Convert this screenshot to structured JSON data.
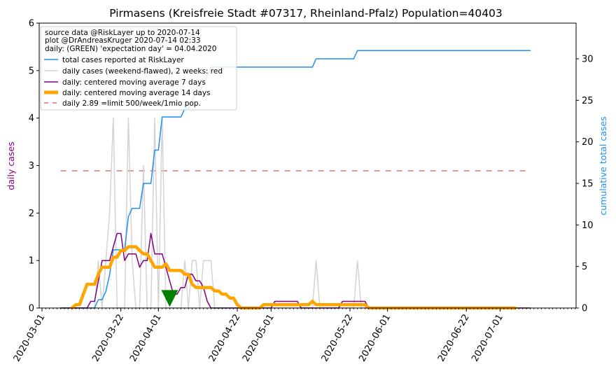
{
  "chart_data": {
    "type": "line",
    "title": "Pirmasens (Kreisfreie Stadt #07317, Rheinland-Pfalz) Population=40403",
    "xlabel": "",
    "ylabel_left": "daily cases",
    "ylabel_right": "cumulative total cases",
    "ylim_left": [
      0,
      6
    ],
    "ylim_right": [
      0,
      34.3
    ],
    "y_ticks_left": [
      "0",
      "1",
      "2",
      "3",
      "4",
      "5",
      "6"
    ],
    "y_ticks_right": [
      "0",
      "5",
      "10",
      "15",
      "20",
      "25",
      "30"
    ],
    "x_ticks": [
      "2020-03-01",
      "2020-03-22",
      "2020-04-01",
      "2020-04-22",
      "2020-05-01",
      "2020-05-22",
      "2020-06-01",
      "2020-06-22",
      "2020-07-01"
    ],
    "x_tick_days": [
      0,
      21,
      31,
      52,
      61,
      82,
      92,
      113,
      122
    ],
    "legend_position": "top-left",
    "legend_header": [
      "source data @RiskLayer up to 2020-07-14",
      "plot @DrAndreasKruger 2020-07-14 02:33",
      "daily: (GREEN) 'expectation day' = 04.04.2020"
    ],
    "series": [
      {
        "name": "total cases reported at RiskLayer",
        "axis": "right",
        "color": "#1e90ee",
        "days": [
          5,
          14,
          15,
          16,
          17,
          18,
          19,
          20,
          21,
          22,
          23,
          24,
          25,
          26,
          27,
          28,
          29,
          30,
          31,
          32,
          33,
          34,
          35,
          36,
          37,
          38,
          39,
          40,
          41,
          42,
          43,
          44,
          45,
          46,
          47,
          48,
          49,
          50,
          51,
          52,
          53,
          54,
          55,
          56,
          57,
          58,
          59,
          60,
          61,
          62,
          63,
          64,
          65,
          66,
          67,
          68,
          69,
          70,
          71,
          72,
          73,
          74,
          75,
          76,
          77,
          78,
          79,
          80,
          81,
          82,
          83,
          84,
          85,
          130
        ],
        "values": [
          0,
          0,
          1,
          1,
          2,
          4,
          7,
          7,
          7,
          7,
          11,
          12,
          12,
          12,
          15,
          15,
          15,
          19,
          19,
          23,
          23,
          23,
          23,
          23,
          23,
          24,
          24,
          25,
          26,
          26,
          27,
          28,
          29,
          29,
          29,
          29,
          29,
          29,
          29,
          29,
          29,
          29,
          29,
          29,
          29,
          29,
          29,
          29,
          29,
          29,
          29,
          29,
          29,
          29,
          29,
          29,
          29,
          29,
          29,
          29,
          30,
          30,
          30,
          30,
          30,
          30,
          30,
          30,
          30,
          30,
          30,
          31,
          31,
          31
        ]
      },
      {
        "name": "daily cases (weekend-flawed), 2 weeks: red",
        "axis": "left",
        "color": "#d3d3d3",
        "days": [
          5,
          14,
          15,
          16,
          17,
          18,
          19,
          20,
          21,
          22,
          23,
          24,
          25,
          26,
          27,
          28,
          29,
          30,
          31,
          32,
          33,
          34,
          35,
          36,
          37,
          38,
          39,
          40,
          41,
          42,
          43,
          44,
          45,
          46,
          47,
          48,
          49,
          50,
          51,
          52,
          53,
          54,
          55,
          56,
          57,
          58,
          59,
          60,
          61,
          62,
          63,
          64,
          65,
          66,
          67,
          68,
          69,
          70,
          71,
          72,
          73,
          74,
          75,
          76,
          77,
          78,
          79,
          80,
          81,
          82,
          83,
          84,
          85,
          130
        ],
        "values": [
          0,
          0,
          1,
          0,
          1,
          2,
          4,
          0,
          0,
          0,
          4,
          1,
          0,
          0,
          3,
          0,
          0,
          4,
          0,
          4,
          0,
          0,
          0,
          0,
          0,
          1,
          0,
          1,
          1,
          0,
          1,
          1,
          1,
          0,
          0,
          0,
          0,
          0,
          0,
          0,
          0,
          0,
          0,
          0,
          0,
          0,
          0,
          0,
          0,
          0,
          0,
          0,
          0,
          0,
          0,
          0,
          0,
          0,
          0,
          0,
          1,
          0,
          0,
          0,
          0,
          0,
          0,
          0,
          0,
          0,
          0,
          1,
          0,
          0
        ]
      },
      {
        "name": "daily: centered moving average 7 days",
        "axis": "left",
        "color": "#800080",
        "days": [
          5,
          12,
          13,
          14,
          15,
          16,
          17,
          18,
          19,
          20,
          21,
          22,
          23,
          24,
          25,
          26,
          27,
          28,
          29,
          30,
          31,
          32,
          33,
          34,
          35,
          36,
          37,
          38,
          39,
          40,
          41,
          42,
          43,
          44,
          45,
          46,
          47,
          48,
          49,
          50,
          51,
          52,
          53,
          54,
          55,
          56,
          57,
          58,
          59,
          60,
          61,
          62,
          63,
          64,
          65,
          66,
          67,
          68,
          69,
          70,
          71,
          72,
          73,
          74,
          75,
          76,
          77,
          78,
          79,
          80,
          81,
          82,
          83,
          84,
          85,
          86,
          87,
          88,
          89,
          90,
          91,
          92,
          130
        ],
        "values": [
          0,
          0,
          0.14,
          0.14,
          0.57,
          1.0,
          1.0,
          1.0,
          1.29,
          1.57,
          1.57,
          1.0,
          1.14,
          1.14,
          1.14,
          0.86,
          1.0,
          1.0,
          1.57,
          1.14,
          1.14,
          1.14,
          0.86,
          0.57,
          0.29,
          0.29,
          0.43,
          0.43,
          0.71,
          0.71,
          0.57,
          0.57,
          0.43,
          0.14,
          0,
          0,
          0,
          0,
          0,
          0,
          0,
          0,
          0,
          0,
          0,
          0,
          0,
          0,
          0,
          0,
          0,
          0.14,
          0.14,
          0.14,
          0.14,
          0.14,
          0.14,
          0.14,
          0,
          0,
          0,
          0,
          0,
          0,
          0,
          0,
          0,
          0,
          0,
          0.14,
          0.14,
          0.14,
          0.14,
          0.14,
          0.14,
          0.14,
          0,
          0,
          0,
          0,
          0,
          0,
          0
        ]
      },
      {
        "name": "daily: centered moving average 14 days",
        "axis": "left",
        "color": "#ffa500",
        "days": [
          8,
          9,
          10,
          11,
          12,
          13,
          14,
          15,
          16,
          17,
          18,
          19,
          20,
          21,
          22,
          23,
          24,
          25,
          26,
          27,
          28,
          29,
          30,
          31,
          32,
          33,
          34,
          35,
          36,
          37,
          38,
          39,
          40,
          41,
          42,
          43,
          44,
          45,
          46,
          47,
          48,
          49,
          50,
          51,
          52,
          53,
          54,
          55,
          56,
          57,
          58,
          59,
          60,
          61,
          62,
          63,
          64,
          65,
          66,
          67,
          68,
          69,
          70,
          71,
          72,
          73,
          74,
          75,
          76,
          77,
          78,
          79,
          80,
          81,
          82,
          83,
          84,
          85,
          86,
          87,
          88,
          89,
          90,
          91,
          92,
          93,
          126
        ],
        "values": [
          0,
          0.07,
          0.07,
          0.29,
          0.5,
          0.5,
          0.5,
          0.71,
          0.86,
          0.86,
          0.86,
          1.07,
          1.07,
          1.21,
          1.21,
          1.29,
          1.29,
          1.29,
          1.21,
          1.14,
          1.14,
          1.0,
          0.86,
          0.86,
          0.86,
          0.93,
          0.79,
          0.79,
          0.79,
          0.79,
          0.71,
          0.71,
          0.5,
          0.43,
          0.43,
          0.43,
          0.43,
          0.43,
          0.36,
          0.36,
          0.29,
          0.29,
          0.21,
          0.21,
          0.07,
          0,
          0,
          0,
          0,
          0,
          0,
          0.07,
          0.07,
          0.07,
          0.07,
          0.07,
          0.07,
          0.07,
          0.07,
          0.07,
          0.07,
          0.07,
          0.07,
          0.07,
          0.14,
          0.07,
          0.07,
          0.07,
          0.07,
          0.07,
          0.07,
          0.07,
          0.07,
          0.07,
          0.07,
          0.07,
          0.07,
          0.07,
          0.07,
          0,
          0,
          0,
          0,
          0,
          0,
          0,
          0
        ]
      },
      {
        "name": "daily 2.89 =limit 500/week/1mio pop.",
        "axis": "left",
        "color": "#e8706a",
        "style": "dashed",
        "days": [
          5,
          130
        ],
        "values": [
          2.89,
          2.89
        ]
      }
    ],
    "expectation_marker": {
      "day": 34,
      "value": 0.2,
      "color": "#008000"
    }
  }
}
